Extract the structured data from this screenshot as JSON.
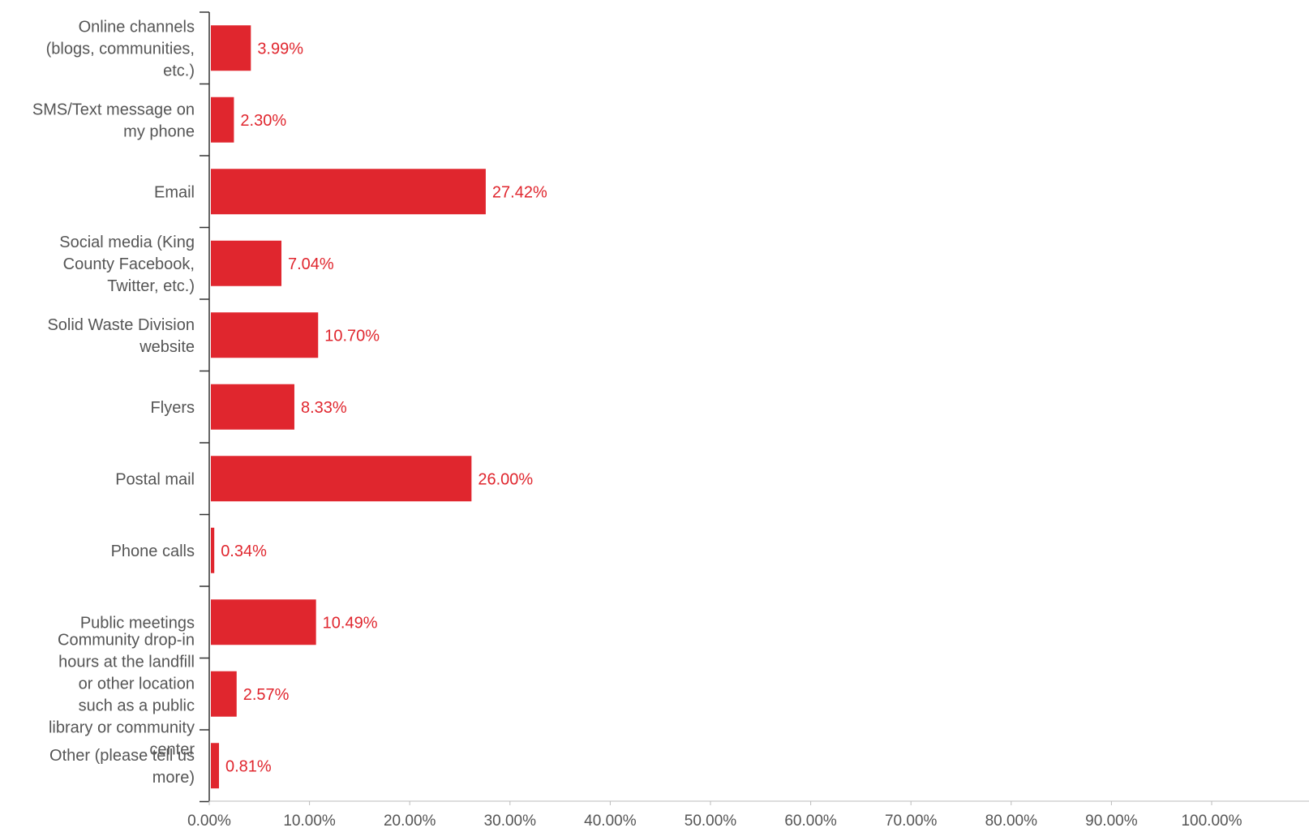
{
  "chart_data": {
    "type": "bar",
    "orientation": "horizontal",
    "categories": [
      [
        "Online channels",
        "(blogs, communities,",
        "etc.)"
      ],
      [
        "SMS/Text message on",
        "my phone"
      ],
      [
        "Email"
      ],
      [
        "Social media (King",
        "County Facebook,",
        "Twitter, etc.)"
      ],
      [
        "Solid Waste Division",
        "website"
      ],
      [
        "Flyers"
      ],
      [
        "Postal mail"
      ],
      [
        "Phone calls"
      ],
      [
        "Public meetings"
      ],
      [
        "Community drop-in",
        "hours at the landfill",
        "or other location",
        "such as a public",
        "library or community",
        "center"
      ],
      [
        "Other (please tell us",
        "more)"
      ]
    ],
    "values": [
      3.99,
      2.3,
      27.42,
      7.04,
      10.7,
      8.33,
      26.0,
      0.34,
      10.49,
      2.57,
      0.81
    ],
    "value_labels": [
      "3.99%",
      "2.30%",
      "27.42%",
      "7.04%",
      "10.70%",
      "8.33%",
      "26.00%",
      "0.34%",
      "10.49%",
      "2.57%",
      "0.81%"
    ],
    "x_ticks": [
      "0.00%",
      "10.00%",
      "20.00%",
      "30.00%",
      "40.00%",
      "50.00%",
      "60.00%",
      "70.00%",
      "80.00%",
      "90.00%",
      "100.00%"
    ],
    "xlim": [
      0,
      100
    ],
    "grid": false,
    "colors": {
      "bar": "#e0262e",
      "value_label": "#e0262e",
      "axis": "#333333",
      "text": "#555555"
    }
  }
}
